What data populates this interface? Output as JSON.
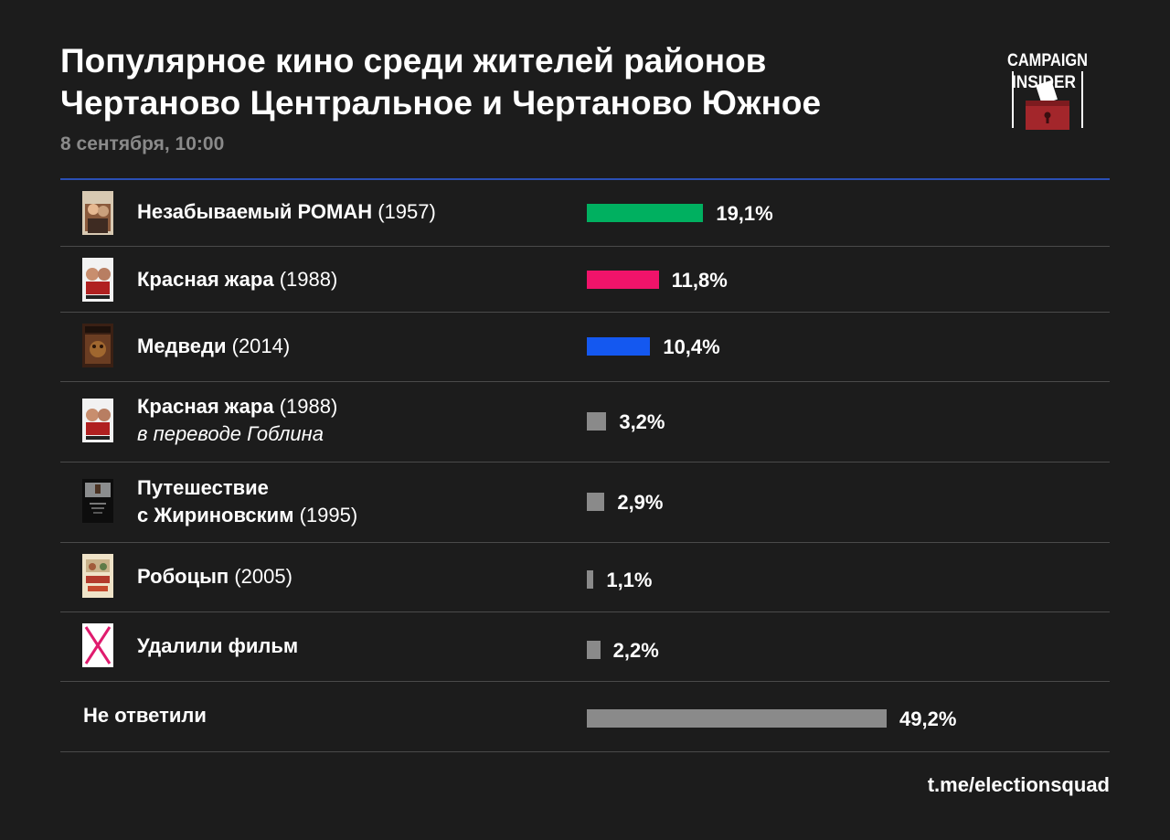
{
  "header": {
    "title_line1": "Популярное кино среди жителей районов",
    "title_line2": "Чертаново Центральное и Чертаново Южное",
    "subtitle": "8 сентября, 10:00"
  },
  "logo": {
    "line1": "CAMPAIGN",
    "line2": "INSIDER",
    "icon": "ballot-box-icon"
  },
  "colors": {
    "background": "#1c1c1c",
    "green": "#00b060",
    "pink": "#f0136a",
    "blue": "#1458f0",
    "gray": "#8a8a8a",
    "rule": "#2a4fb5"
  },
  "chart_data": {
    "type": "bar",
    "orientation": "horizontal",
    "title": "Популярное кино среди жителей районов Чертаново Центральное и Чертаново Южное",
    "subtitle": "8 сентября, 10:00",
    "unit": "%",
    "xlim": [
      0,
      49.2
    ],
    "rows": [
      {
        "title": "Незабываемый РОМАН",
        "year": "(1957)",
        "note": "",
        "value": 19.1,
        "label": "19,1%",
        "color": "#00b060",
        "poster": "poster-romance-icon"
      },
      {
        "title": "Красная жара",
        "year": "(1988)",
        "note": "",
        "value": 11.8,
        "label": "11,8%",
        "color": "#f0136a",
        "poster": "poster-red-heat-icon"
      },
      {
        "title": "Медведи",
        "year": "(2014)",
        "note": "",
        "value": 10.4,
        "label": "10,4%",
        "color": "#1458f0",
        "poster": "poster-bears-icon"
      },
      {
        "title": "Красная жара",
        "year": "(1988)",
        "note": "в переводе Гоблина",
        "value": 3.2,
        "label": "3,2%",
        "color": "#8a8a8a",
        "poster": "poster-red-heat-icon"
      },
      {
        "title": "Путешествие с Жириновским",
        "year": "(1995)",
        "note": "",
        "value": 2.9,
        "label": "2,9%",
        "color": "#8a8a8a",
        "poster": "poster-zhirinovsky-icon"
      },
      {
        "title": "Робоцып",
        "year": "(2005)",
        "note": "",
        "value": 1.1,
        "label": "1,1%",
        "color": "#8a8a8a",
        "poster": "poster-robot-chicken-icon"
      },
      {
        "title": "Удалили фильм",
        "year": "",
        "note": "",
        "value": 2.2,
        "label": "2,2%",
        "color": "#8a8a8a",
        "poster": "deleted-cross-icon"
      },
      {
        "title": "Не ответили",
        "year": "",
        "note": "",
        "value": 49.2,
        "label": "49,2%",
        "color": "#8a8a8a",
        "poster": ""
      }
    ]
  },
  "labels": {
    "row4_line1": "Путешествие",
    "row4_line2": "с Жириновским"
  },
  "footer": {
    "link": "t.me/electionsquad"
  }
}
